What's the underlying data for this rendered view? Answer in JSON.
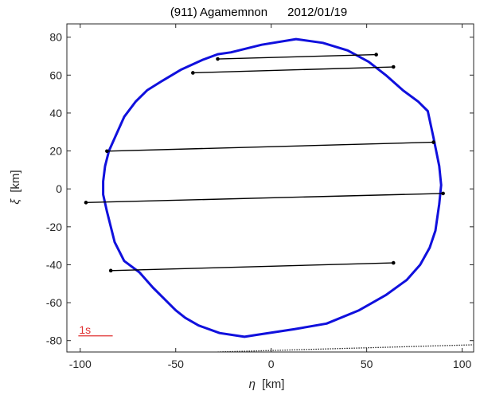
{
  "chart_data": {
    "type": "line",
    "title": "(911) Agamemnon      2012/01/19",
    "xlabel_symbol": "η",
    "xlabel_unit": "[km]",
    "ylabel_symbol": "ξ",
    "ylabel_unit": "[km]",
    "xlim": [
      -107,
      106
    ],
    "ylim": [
      -86,
      87
    ],
    "xticks": [
      -100,
      -50,
      0,
      50,
      100
    ],
    "yticks": [
      -80,
      -60,
      -40,
      -20,
      0,
      20,
      40,
      60,
      80
    ],
    "grid": false,
    "scale_bar_label": "1s",
    "scale_bar": {
      "x_start": -101,
      "x_end": -83,
      "y": -77.5
    },
    "shape_outline": {
      "color": "#1010dd",
      "x": [
        13,
        27,
        40,
        51,
        60,
        69,
        77,
        82,
        85,
        88,
        89,
        88,
        86,
        83,
        78,
        71,
        60,
        46,
        29,
        12,
        -8,
        -14,
        -27,
        -38,
        -45,
        -50,
        -56,
        -62,
        -69,
        -77,
        -82,
        -86,
        -88,
        -88,
        -87,
        -85,
        -81,
        -77,
        -71,
        -65,
        -57,
        -47,
        -36,
        -28,
        -21,
        -5,
        13
      ],
      "y": [
        79,
        77,
        73,
        67,
        60,
        52,
        46,
        41,
        27,
        12,
        2,
        -8,
        -22,
        -31,
        -40,
        -48,
        -56,
        -64,
        -71,
        -74,
        -77,
        -78,
        -76,
        -72,
        -68,
        -64,
        -58,
        -52,
        -44,
        -38,
        -28,
        -12,
        -3,
        4,
        12,
        20,
        29,
        38,
        46,
        52,
        57,
        63,
        68,
        71,
        72,
        76,
        79
      ]
    },
    "chords": [
      {
        "x": [
          -28,
          55
        ],
        "y": [
          68.5,
          70.8
        ]
      },
      {
        "x": [
          -41,
          64
        ],
        "y": [
          61.2,
          64.3
        ]
      },
      {
        "x": [
          -86,
          85
        ],
        "y": [
          19.9,
          24.6
        ]
      },
      {
        "x": [
          -97,
          90
        ],
        "y": [
          -7.2,
          -2.4
        ]
      },
      {
        "x": [
          -84,
          64
        ],
        "y": [
          -43.1,
          -39.0
        ]
      }
    ],
    "chord_color": "#000000",
    "dotted_line": {
      "x": [
        -28,
        106
      ],
      "y": [
        -86,
        -82.2
      ]
    }
  }
}
